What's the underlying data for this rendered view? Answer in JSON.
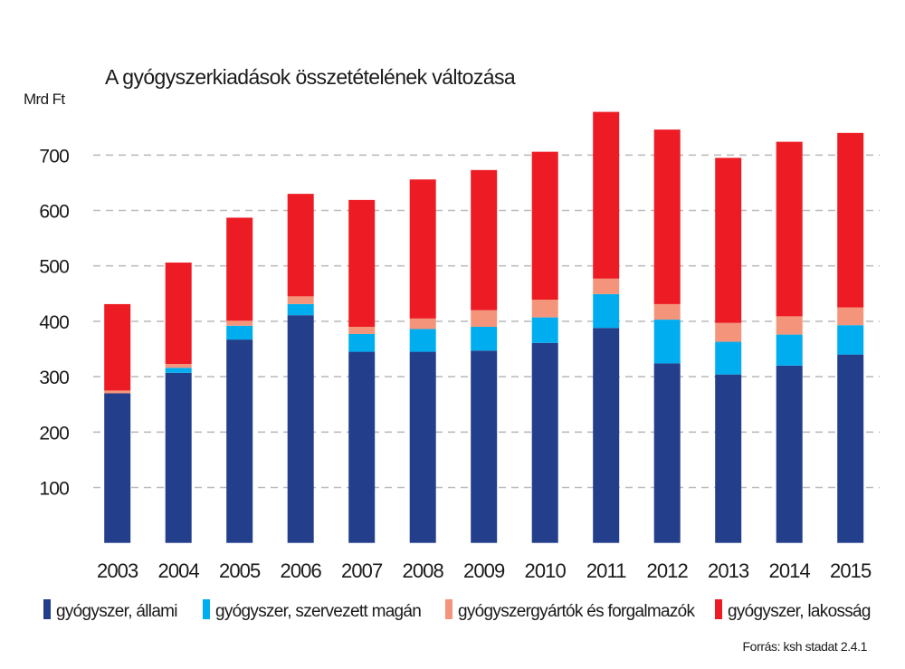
{
  "chart_data": {
    "type": "bar",
    "stacked": true,
    "title": "A gyógyszerkiadások összetételének változása",
    "ylabel": "Mrd Ft",
    "xlabel": "",
    "ylim": [
      0,
      800
    ],
    "yticks": [
      100,
      200,
      300,
      400,
      500,
      600,
      700
    ],
    "grid": true,
    "legend_position": "bottom",
    "categories": [
      "2003",
      "2004",
      "2005",
      "2006",
      "2007",
      "2008",
      "2009",
      "2010",
      "2011",
      "2012",
      "2013",
      "2014",
      "2015"
    ],
    "series": [
      {
        "name": "gyógyszer, állami",
        "color": "#233e8b",
        "values": [
          270,
          307,
          367,
          411,
          345,
          345,
          347,
          361,
          388,
          324,
          304,
          320,
          340
        ]
      },
      {
        "name": "gyógyszer, szervezett magán",
        "color": "#00aeef",
        "values": [
          0,
          9,
          25,
          20,
          32,
          41,
          43,
          46,
          61,
          79,
          59,
          56,
          53
        ]
      },
      {
        "name": "gyógyszergyártók és forgalmazók",
        "color": "#f4957b",
        "values": [
          5,
          7,
          9,
          14,
          13,
          19,
          30,
          32,
          28,
          28,
          34,
          33,
          32
        ]
      },
      {
        "name": "gyógyszer, lakosság",
        "color": "#ed1c24",
        "values": [
          156,
          183,
          186,
          185,
          229,
          251,
          253,
          267,
          301,
          315,
          298,
          315,
          315
        ]
      }
    ],
    "totals": [
      431,
      506,
      587,
      630,
      619,
      656,
      673,
      706,
      778,
      746,
      695,
      724,
      740
    ],
    "source": "Forrás: ksh stadat 2.4.1"
  }
}
